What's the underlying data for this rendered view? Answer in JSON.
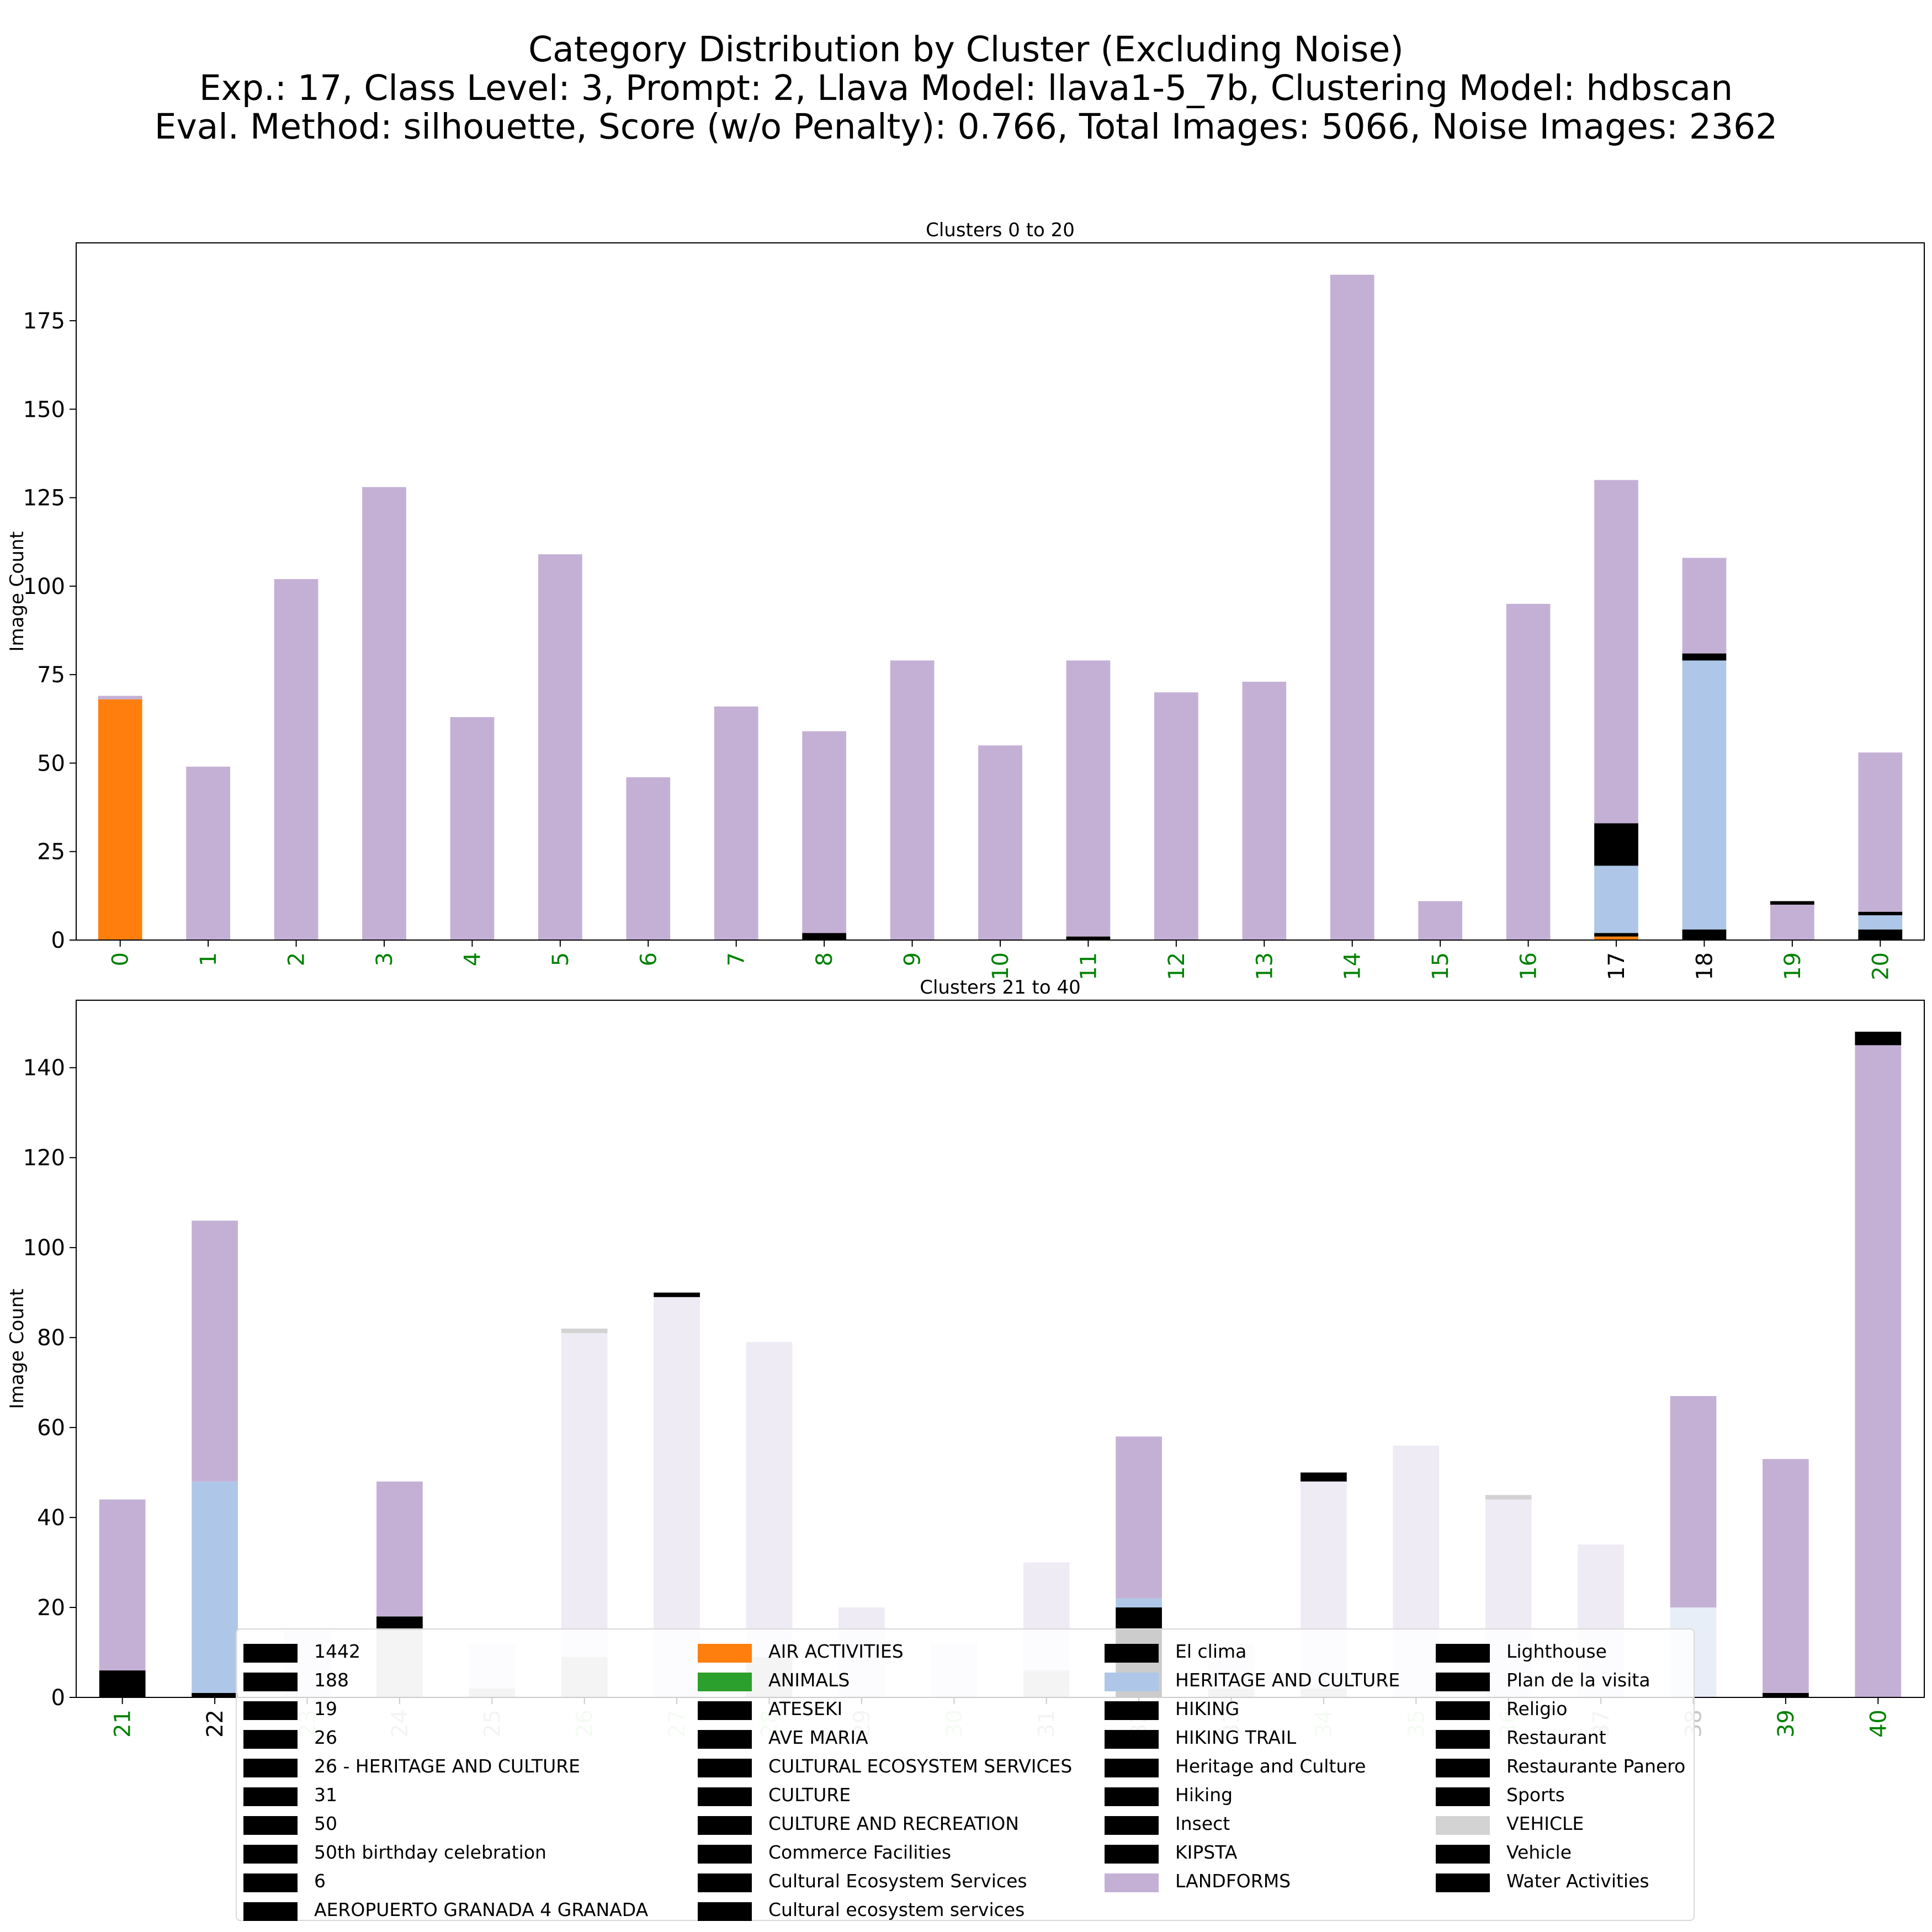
{
  "title_lines": [
    "Category Distribution by Cluster (Excluding Noise)",
    "Exp.: 17, Class Level: 3, Prompt: 2, Llava Model: llava1-5_7b, Clustering Model: hdbscan",
    "Eval. Method: silhouette, Score (w/o Penalty): 0.766, Total Images: 5066, Noise Images: 2362"
  ],
  "colors": {
    "AIR ACTIVITIES": "#ff7f0e",
    "ANIMALS": "#2ca02c",
    "HERITAGE AND CULTURE": "#aec7e8",
    "LANDFORMS": "#c5b0d5",
    "VEHICLE": "#d3d3d3",
    "other": "#000000",
    "tick_green": "#008000",
    "tick_lightgreen": "#c7e9c0",
    "tick_lightgray": "#c8c8c8",
    "tick_black": "#000000",
    "faded_landforms": "#efebf4",
    "faded_heritage": "#e8eef8",
    "faded_vehicle": "#c8c8c8"
  },
  "chart_data": [
    {
      "type": "bar",
      "stacked": true,
      "title": "Clusters 0 to 20",
      "ylabel": "Image Count",
      "xlabel": "",
      "ylim": [
        0,
        197
      ],
      "yticks": [
        0,
        25,
        50,
        75,
        100,
        125,
        150,
        175
      ],
      "categories": [
        "0",
        "1",
        "2",
        "3",
        "4",
        "5",
        "6",
        "7",
        "8",
        "9",
        "10",
        "11",
        "12",
        "13",
        "14",
        "15",
        "16",
        "17",
        "18",
        "19",
        "20"
      ],
      "tick_colors": [
        "green",
        "green",
        "green",
        "green",
        "green",
        "green",
        "green",
        "green",
        "green",
        "green",
        "green",
        "green",
        "green",
        "green",
        "green",
        "green",
        "green",
        "black",
        "black",
        "green",
        "green"
      ],
      "series": [
        {
          "name": "AIR ACTIVITIES",
          "color": "#ff7f0e",
          "values": [
            68,
            0,
            0,
            0,
            0,
            0,
            0,
            0,
            0,
            0,
            0,
            0,
            0,
            0,
            0,
            0,
            0,
            1,
            0,
            0,
            0
          ]
        },
        {
          "name": "other",
          "color": "#000000",
          "values": [
            0,
            0,
            0,
            0,
            0,
            0,
            0,
            0,
            2,
            0,
            0,
            0,
            0,
            0,
            0,
            0,
            0,
            1,
            3,
            0,
            3
          ]
        },
        {
          "name": "HERITAGE AND CULTURE",
          "color": "#aec7e8",
          "values": [
            0,
            0,
            0,
            0,
            0,
            0,
            0,
            0,
            0,
            0,
            0,
            0,
            0,
            0,
            0,
            0,
            0,
            19,
            76,
            0,
            4
          ]
        },
        {
          "name": "other",
          "color": "#000000",
          "values": [
            0,
            0,
            0,
            0,
            0,
            0,
            0,
            0,
            0,
            0,
            0,
            1,
            0,
            0,
            0,
            0,
            0,
            12,
            2,
            0,
            1
          ]
        },
        {
          "name": "LANDFORMS",
          "color": "#c5b0d5",
          "values": [
            1,
            49,
            102,
            128,
            63,
            109,
            46,
            66,
            57,
            79,
            55,
            78,
            70,
            73,
            188,
            11,
            95,
            97,
            27,
            10,
            45
          ]
        },
        {
          "name": "other",
          "color": "#000000",
          "values": [
            0,
            0,
            0,
            0,
            0,
            0,
            0,
            0,
            0,
            0,
            0,
            0,
            0,
            0,
            0,
            0,
            0,
            0,
            0,
            1,
            0
          ]
        }
      ]
    },
    {
      "type": "bar",
      "stacked": true,
      "title": "Clusters 21 to 40",
      "ylabel": "Image Count",
      "xlabel": "",
      "ylim": [
        0,
        155
      ],
      "yticks": [
        0,
        20,
        40,
        60,
        80,
        100,
        120,
        140
      ],
      "categories": [
        "21",
        "22",
        "23",
        "24",
        "25",
        "26",
        "27",
        "28",
        "29",
        "30",
        "31",
        "32",
        "33",
        "34",
        "35",
        "36",
        "37",
        "38",
        "39",
        "40"
      ],
      "tick_colors": [
        "green",
        "black",
        "lightgreen",
        "lightgray",
        "lightgray",
        "lightgreen",
        "lightgreen",
        "lightgreen",
        "lightgray",
        "lightgreen",
        "lightgray",
        "lightgray",
        "lightgray",
        "lightgreen",
        "lightgreen",
        "lightgreen",
        "lightgray",
        "lightgray",
        "green",
        "green"
      ],
      "series": [
        {
          "name": "other",
          "color": "#000000",
          "values": [
            6,
            1,
            0,
            0,
            0,
            0,
            0,
            0,
            0,
            0,
            0,
            0,
            0,
            0,
            0,
            0,
            0,
            0,
            1,
            0
          ]
        },
        {
          "name": "VEHICLE",
          "color": "#c8c8c8",
          "values": [
            0,
            0,
            0,
            15,
            2,
            9,
            0,
            9,
            0,
            0,
            6,
            0,
            2,
            2,
            0,
            0,
            0,
            0,
            0,
            0
          ]
        },
        {
          "name": "HERITAGE AND CULTURE",
          "color": "#aec7e8",
          "values": [
            0,
            47,
            0,
            0,
            0,
            0,
            0,
            0,
            0,
            0,
            0,
            0,
            0,
            0,
            0,
            0,
            0,
            20,
            0,
            0
          ]
        },
        {
          "name": "other",
          "color": "#000000",
          "values": [
            0,
            0,
            0,
            3,
            0,
            0,
            0,
            0,
            0,
            0,
            0,
            20,
            0,
            0,
            0,
            0,
            0,
            0,
            0,
            0
          ]
        },
        {
          "name": "HERITAGE AND CULTURE",
          "color": "#aec7e8",
          "values": [
            0,
            0,
            0,
            0,
            0,
            0,
            0,
            0,
            0,
            0,
            0,
            2,
            0,
            0,
            0,
            0,
            0,
            0,
            0,
            0
          ]
        },
        {
          "name": "LANDFORMS",
          "color": "#c5b0d5",
          "values": [
            38,
            58,
            15,
            30,
            10,
            72,
            89,
            70,
            20,
            12,
            24,
            36,
            10,
            46,
            56,
            44,
            34,
            47,
            52,
            145
          ]
        },
        {
          "name": "VEHICLE",
          "color": "#d3d3d3",
          "values": [
            0,
            0,
            0,
            0,
            0,
            1,
            0,
            0,
            0,
            0,
            0,
            0,
            0,
            0,
            0,
            1,
            0,
            0,
            0,
            0
          ]
        },
        {
          "name": "other",
          "color": "#000000",
          "values": [
            0,
            0,
            0,
            0,
            0,
            0,
            1,
            0,
            0,
            0,
            0,
            0,
            0,
            2,
            0,
            0,
            0,
            0,
            0,
            3
          ]
        }
      ]
    }
  ],
  "legend": {
    "columns": [
      [
        {
          "label": "1442",
          "color": "#000000"
        },
        {
          "label": "188",
          "color": "#000000"
        },
        {
          "label": "19",
          "color": "#000000"
        },
        {
          "label": "26",
          "color": "#000000"
        },
        {
          "label": "26 - HERITAGE AND CULTURE",
          "color": "#000000"
        },
        {
          "label": "31",
          "color": "#000000"
        },
        {
          "label": "50",
          "color": "#000000"
        },
        {
          "label": "50th birthday celebration",
          "color": "#000000"
        },
        {
          "label": "6",
          "color": "#000000"
        },
        {
          "label": "AEROPUERTO GRANADA 4 GRANADA",
          "color": "#000000"
        }
      ],
      [
        {
          "label": "AIR ACTIVITIES",
          "color": "#ff7f0e"
        },
        {
          "label": "ANIMALS",
          "color": "#2ca02c"
        },
        {
          "label": "ATESEKI",
          "color": "#000000"
        },
        {
          "label": "AVE MARIA",
          "color": "#000000"
        },
        {
          "label": "CULTURAL ECOSYSTEM SERVICES",
          "color": "#000000"
        },
        {
          "label": "CULTURE",
          "color": "#000000"
        },
        {
          "label": "CULTURE AND RECREATION",
          "color": "#000000"
        },
        {
          "label": "Commerce Facilities",
          "color": "#000000"
        },
        {
          "label": "Cultural Ecosystem Services",
          "color": "#000000"
        },
        {
          "label": "Cultural ecosystem services",
          "color": "#000000"
        }
      ],
      [
        {
          "label": "El clima",
          "color": "#000000"
        },
        {
          "label": "HERITAGE AND CULTURE",
          "color": "#aec7e8"
        },
        {
          "label": "HIKING",
          "color": "#000000"
        },
        {
          "label": "HIKING TRAIL",
          "color": "#000000"
        },
        {
          "label": "Heritage and Culture",
          "color": "#000000"
        },
        {
          "label": "Hiking",
          "color": "#000000"
        },
        {
          "label": "Insect",
          "color": "#000000"
        },
        {
          "label": "KIPSTA",
          "color": "#000000"
        },
        {
          "label": "LANDFORMS",
          "color": "#c5b0d5"
        }
      ],
      [
        {
          "label": "Lighthouse",
          "color": "#000000"
        },
        {
          "label": "Plan de la visita",
          "color": "#000000"
        },
        {
          "label": "Religio",
          "color": "#000000"
        },
        {
          "label": "Restaurant",
          "color": "#000000"
        },
        {
          "label": "Restaurante Panero",
          "color": "#000000"
        },
        {
          "label": "Sports",
          "color": "#000000"
        },
        {
          "label": "VEHICLE",
          "color": "#d3d3d3"
        },
        {
          "label": "Vehicle",
          "color": "#000000"
        },
        {
          "label": "Water Activities",
          "color": "#000000"
        }
      ]
    ]
  }
}
